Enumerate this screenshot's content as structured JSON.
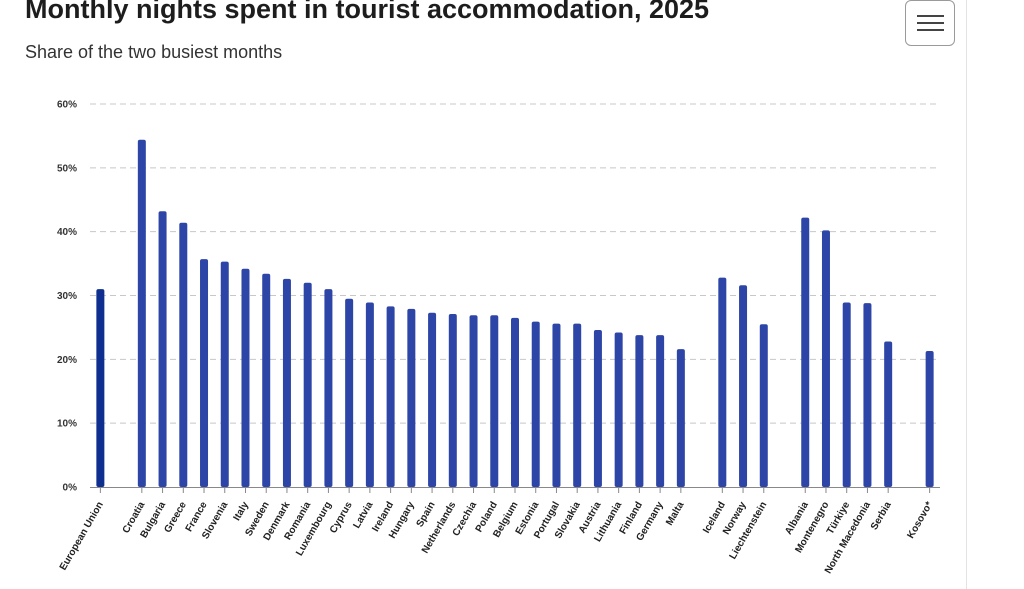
{
  "header": {
    "title": "Monthly nights spent in tourist accommodation, 2025",
    "subtitle": "Share of the two busiest months",
    "menu_icon": "hamburger-menu-icon"
  },
  "colors": {
    "eu_bar": "#0e2f8f",
    "bar": "#2d45a6",
    "grid": "#c8c8c8",
    "axis": "#888888"
  },
  "chart_data": {
    "type": "bar",
    "title": "Monthly nights spent in tourist accommodation, 2025",
    "subtitle": "Share of the two busiest months",
    "xlabel": "",
    "ylabel": "",
    "ylim": [
      0,
      60
    ],
    "y_ticks": [
      0,
      10,
      20,
      30,
      40,
      50,
      60
    ],
    "y_tick_labels": [
      "0%",
      "10%",
      "20%",
      "30%",
      "40%",
      "50%",
      "60%"
    ],
    "grid": true,
    "legend": "none",
    "groups": [
      {
        "categories": [
          "European Union"
        ],
        "values": [
          31.0
        ]
      },
      {
        "categories": [
          "Croatia",
          "Bulgaria",
          "Greece",
          "France",
          "Slovenia",
          "Italy",
          "Sweden",
          "Denmark",
          "Romania",
          "Luxembourg",
          "Cyprus",
          "Latvia",
          "Ireland",
          "Hungary",
          "Spain",
          "Netherlands",
          "Czechia",
          "Poland",
          "Belgium",
          "Estonia",
          "Portugal",
          "Slovakia",
          "Austria",
          "Lithuania",
          "Finland",
          "Germany",
          "Malta"
        ],
        "values": [
          54.4,
          43.2,
          41.4,
          35.7,
          35.3,
          34.2,
          33.4,
          32.6,
          32.0,
          31.0,
          29.5,
          28.9,
          28.3,
          27.9,
          27.3,
          27.1,
          26.9,
          26.9,
          26.5,
          25.9,
          25.6,
          25.6,
          24.6,
          24.2,
          23.8,
          23.8,
          21.6
        ]
      },
      {
        "categories": [
          "Iceland",
          "Norway",
          "Liechtenstein"
        ],
        "values": [
          32.8,
          31.6,
          25.5
        ]
      },
      {
        "categories": [
          "Albania",
          "Montenegro",
          "Türkiye",
          "North Macedonia",
          "Serbia"
        ],
        "values": [
          42.2,
          40.2,
          28.9,
          28.8,
          22.8
        ]
      },
      {
        "categories": [
          "Kosovo*"
        ],
        "values": [
          21.3
        ]
      }
    ]
  }
}
